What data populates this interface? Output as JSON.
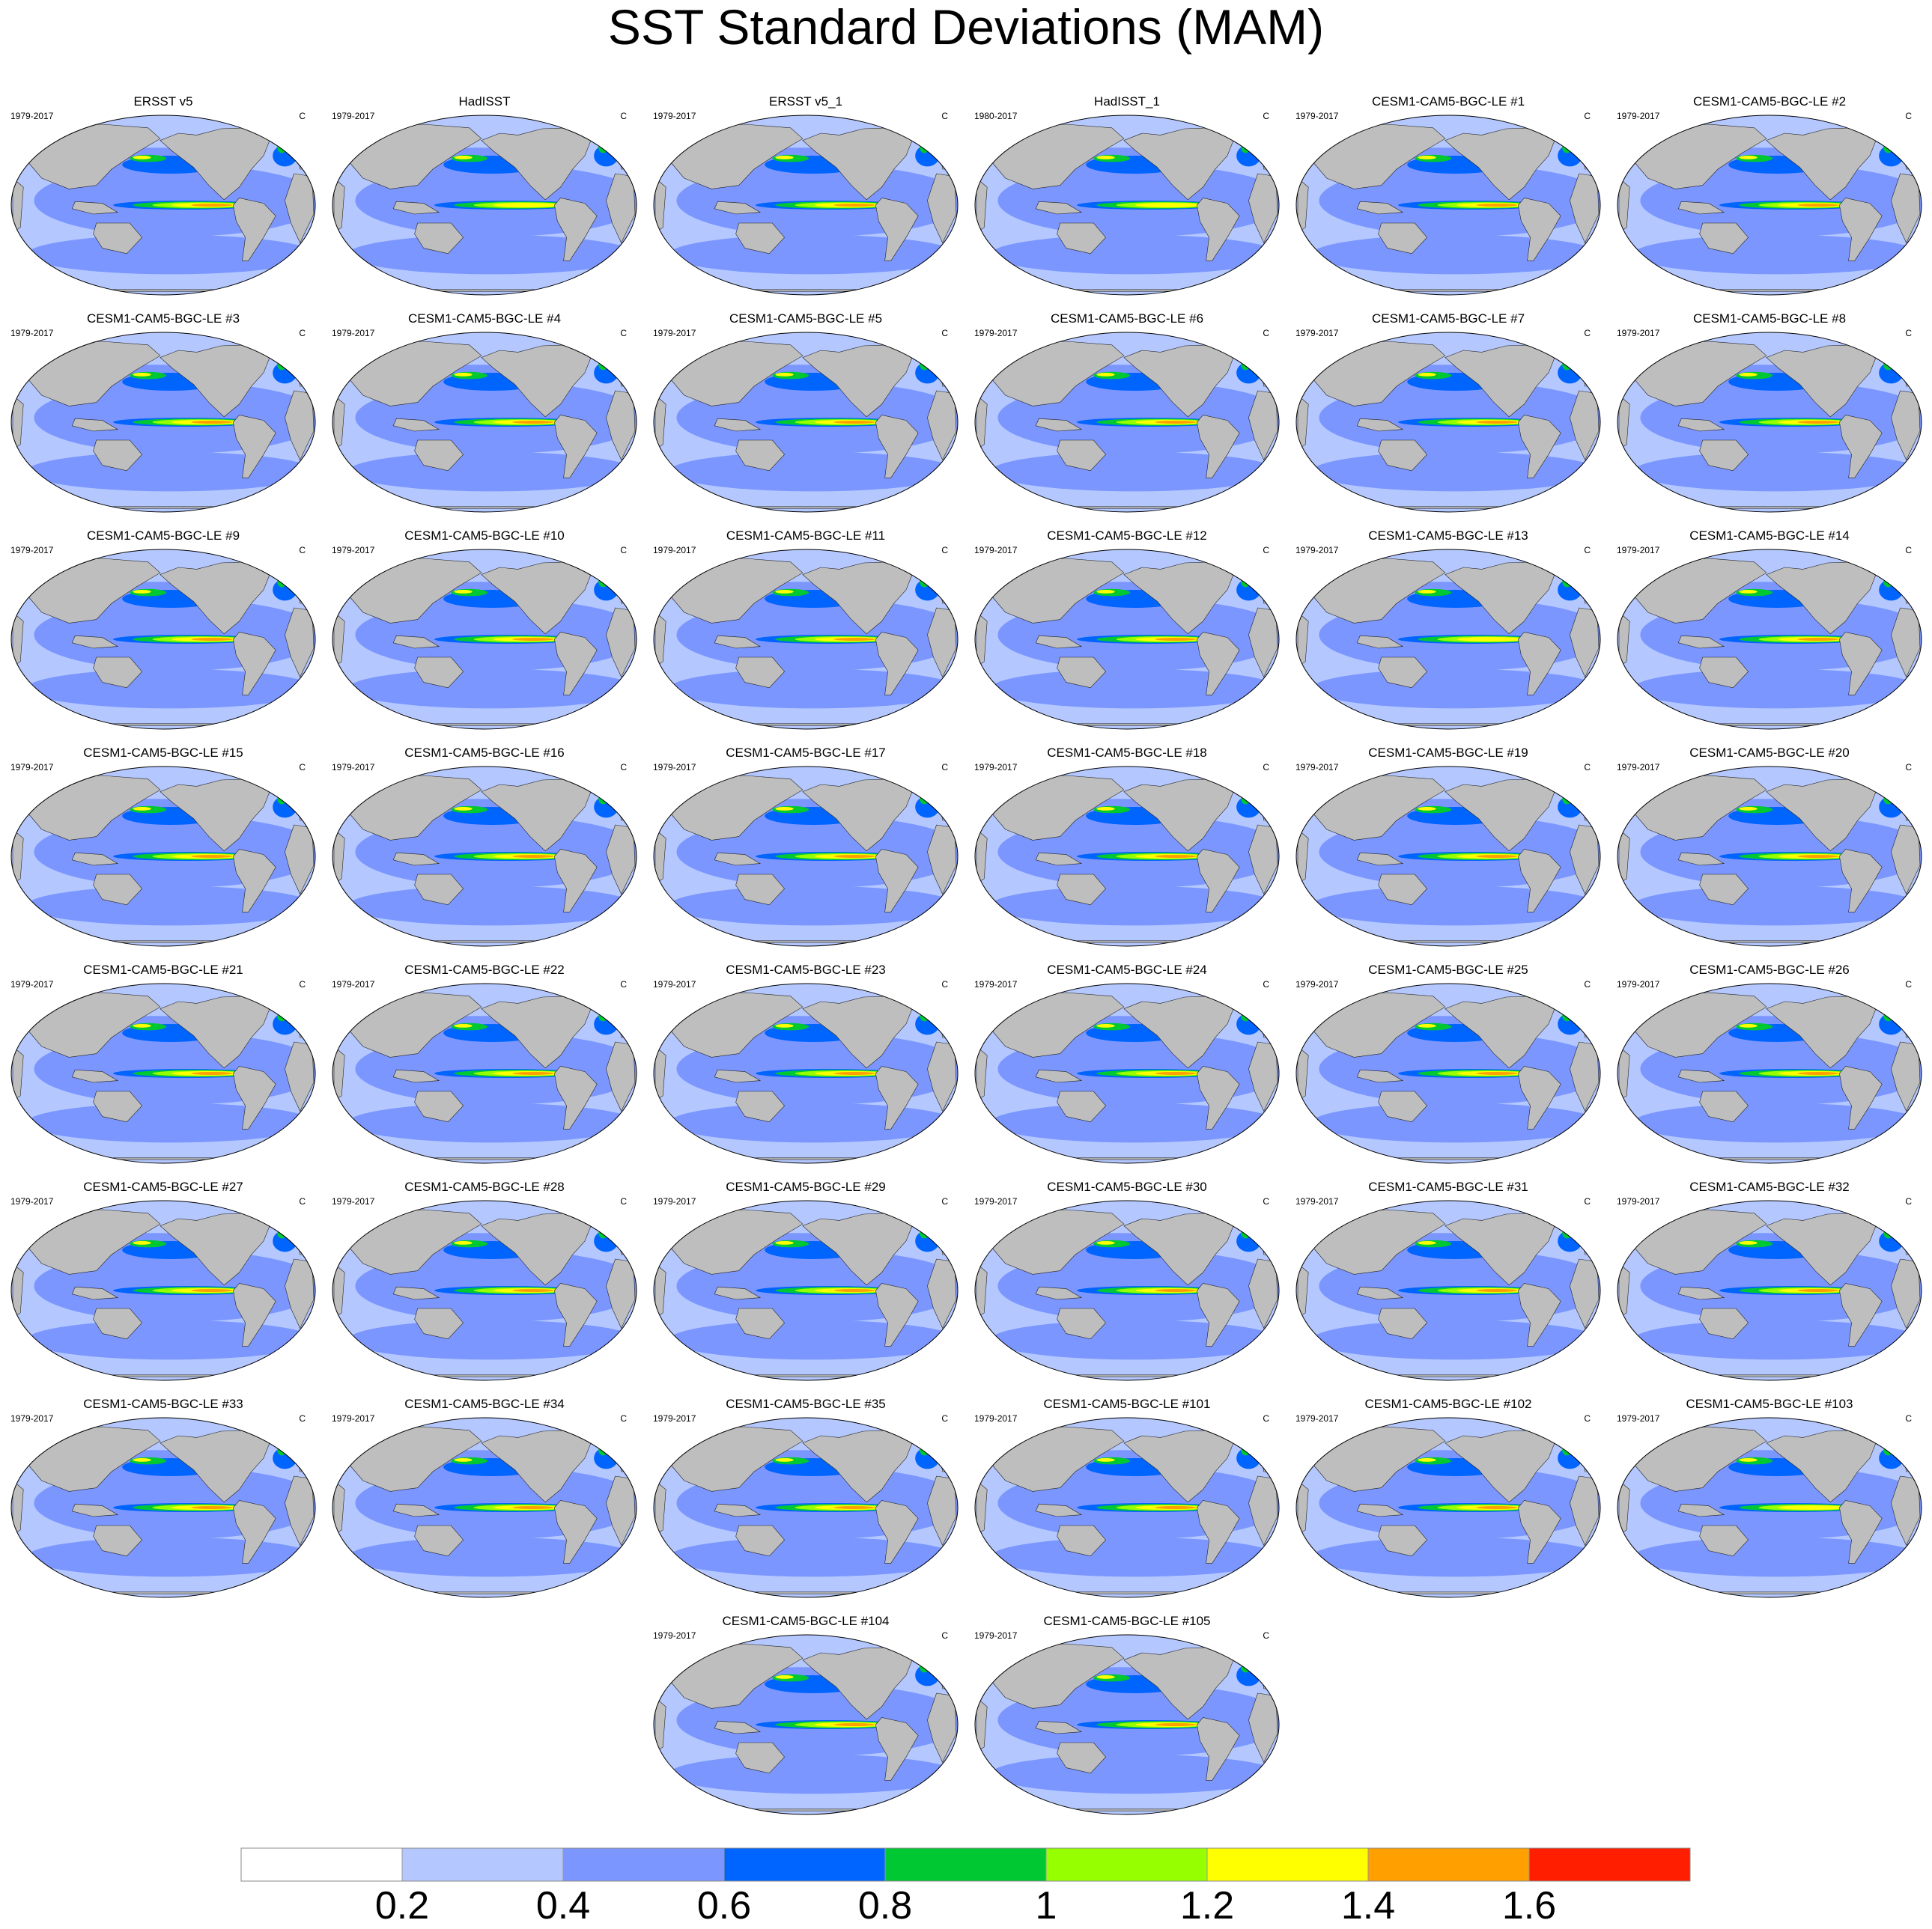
{
  "title": "SST Standard Deviations (MAM)",
  "colors": {
    "land": "#bebebe",
    "levels": [
      "#ffffff",
      "#b4c8ff",
      "#7b96ff",
      "#0064ff",
      "#00c832",
      "#96ff00",
      "#ffff00",
      "#ffa000",
      "#ff1e00"
    ]
  },
  "chart_data": {
    "type": "contour_map_panels",
    "projection": "robinson",
    "units": "C",
    "colorbar": {
      "labels": [
        "0.2",
        "0.4",
        "0.6",
        "0.8",
        "1",
        "1.2",
        "1.4",
        "1.6"
      ],
      "levels": [
        0.2,
        0.4,
        0.6,
        0.8,
        1.0,
        1.2,
        1.4,
        1.6
      ]
    },
    "panels": [
      {
        "name": "ERSST v5",
        "years": "1979-2017",
        "units": "C",
        "nino_max": 1.4
      },
      {
        "name": "HadISST",
        "years": "1979-2017",
        "units": "C",
        "nino_max": 1.2
      },
      {
        "name": "ERSST v5_1",
        "years": "1979-2017",
        "units": "C",
        "nino_max": 1.4
      },
      {
        "name": "HadISST_1",
        "years": "1980-2017",
        "units": "C",
        "nino_max": 1.2
      },
      {
        "name": "CESM1-CAM5-BGC-LE #1",
        "years": "1979-2017",
        "units": "C",
        "nino_max": 1.4
      },
      {
        "name": "CESM1-CAM5-BGC-LE #2",
        "years": "1979-2017",
        "units": "C",
        "nino_max": 1.4
      },
      {
        "name": "CESM1-CAM5-BGC-LE #3",
        "years": "1979-2017",
        "units": "C",
        "nino_max": 1.4
      },
      {
        "name": "CESM1-CAM5-BGC-LE #4",
        "years": "1979-2017",
        "units": "C",
        "nino_max": 1.4
      },
      {
        "name": "CESM1-CAM5-BGC-LE #5",
        "years": "1979-2017",
        "units": "C",
        "nino_max": 1.4
      },
      {
        "name": "CESM1-CAM5-BGC-LE #6",
        "years": "1979-2017",
        "units": "C",
        "nino_max": 1.4
      },
      {
        "name": "CESM1-CAM5-BGC-LE #7",
        "years": "1979-2017",
        "units": "C",
        "nino_max": 1.4
      },
      {
        "name": "CESM1-CAM5-BGC-LE #8",
        "years": "1979-2017",
        "units": "C",
        "nino_max": 1.4
      },
      {
        "name": "CESM1-CAM5-BGC-LE #9",
        "years": "1979-2017",
        "units": "C",
        "nino_max": 1.4
      },
      {
        "name": "CESM1-CAM5-BGC-LE #10",
        "years": "1979-2017",
        "units": "C",
        "nino_max": 1.4
      },
      {
        "name": "CESM1-CAM5-BGC-LE #11",
        "years": "1979-2017",
        "units": "C",
        "nino_max": 1.4
      },
      {
        "name": "CESM1-CAM5-BGC-LE #12",
        "years": "1979-2017",
        "units": "C",
        "nino_max": 1.4
      },
      {
        "name": "CESM1-CAM5-BGC-LE #13",
        "years": "1979-2017",
        "units": "C",
        "nino_max": 1.2
      },
      {
        "name": "CESM1-CAM5-BGC-LE #14",
        "years": "1979-2017",
        "units": "C",
        "nino_max": 1.4
      },
      {
        "name": "CESM1-CAM5-BGC-LE #15",
        "years": "1979-2017",
        "units": "C",
        "nino_max": 1.4
      },
      {
        "name": "CESM1-CAM5-BGC-LE #16",
        "years": "1979-2017",
        "units": "C",
        "nino_max": 1.4
      },
      {
        "name": "CESM1-CAM5-BGC-LE #17",
        "years": "1979-2017",
        "units": "C",
        "nino_max": 1.4
      },
      {
        "name": "CESM1-CAM5-BGC-LE #18",
        "years": "1979-2017",
        "units": "C",
        "nino_max": 1.4
      },
      {
        "name": "CESM1-CAM5-BGC-LE #19",
        "years": "1979-2017",
        "units": "C",
        "nino_max": 1.4
      },
      {
        "name": "CESM1-CAM5-BGC-LE #20",
        "years": "1979-2017",
        "units": "C",
        "nino_max": 1.4
      },
      {
        "name": "CESM1-CAM5-BGC-LE #21",
        "years": "1979-2017",
        "units": "C",
        "nino_max": 1.4
      },
      {
        "name": "CESM1-CAM5-BGC-LE #22",
        "years": "1979-2017",
        "units": "C",
        "nino_max": 1.4
      },
      {
        "name": "CESM1-CAM5-BGC-LE #23",
        "years": "1979-2017",
        "units": "C",
        "nino_max": 1.4
      },
      {
        "name": "CESM1-CAM5-BGC-LE #24",
        "years": "1979-2017",
        "units": "C",
        "nino_max": 1.4
      },
      {
        "name": "CESM1-CAM5-BGC-LE #25",
        "years": "1979-2017",
        "units": "C",
        "nino_max": 1.4
      },
      {
        "name": "CESM1-CAM5-BGC-LE #26",
        "years": "1979-2017",
        "units": "C",
        "nino_max": 1.4
      },
      {
        "name": "CESM1-CAM5-BGC-LE #27",
        "years": "1979-2017",
        "units": "C",
        "nino_max": 1.4
      },
      {
        "name": "CESM1-CAM5-BGC-LE #28",
        "years": "1979-2017",
        "units": "C",
        "nino_max": 1.4
      },
      {
        "name": "CESM1-CAM5-BGC-LE #29",
        "years": "1979-2017",
        "units": "C",
        "nino_max": 1.4
      },
      {
        "name": "CESM1-CAM5-BGC-LE #30",
        "years": "1979-2017",
        "units": "C",
        "nino_max": 1.4
      },
      {
        "name": "CESM1-CAM5-BGC-LE #31",
        "years": "1979-2017",
        "units": "C",
        "nino_max": 1.4
      },
      {
        "name": "CESM1-CAM5-BGC-LE #32",
        "years": "1979-2017",
        "units": "C",
        "nino_max": 1.4
      },
      {
        "name": "CESM1-CAM5-BGC-LE #33",
        "years": "1979-2017",
        "units": "C",
        "nino_max": 1.4
      },
      {
        "name": "CESM1-CAM5-BGC-LE #34",
        "years": "1979-2017",
        "units": "C",
        "nino_max": 1.4
      },
      {
        "name": "CESM1-CAM5-BGC-LE #35",
        "years": "1979-2017",
        "units": "C",
        "nino_max": 1.4
      },
      {
        "name": "CESM1-CAM5-BGC-LE #101",
        "years": "1979-2017",
        "units": "C",
        "nino_max": 1.4
      },
      {
        "name": "CESM1-CAM5-BGC-LE #102",
        "years": "1979-2017",
        "units": "C",
        "nino_max": 1.4
      },
      {
        "name": "CESM1-CAM5-BGC-LE #103",
        "years": "1979-2017",
        "units": "C",
        "nino_max": 1.2
      },
      {
        "name": "CESM1-CAM5-BGC-LE #104",
        "years": "1979-2017",
        "units": "C",
        "nino_max": 1.4
      },
      {
        "name": "CESM1-CAM5-BGC-LE #105",
        "years": "1979-2017",
        "units": "C",
        "nino_max": 1.4
      }
    ]
  }
}
